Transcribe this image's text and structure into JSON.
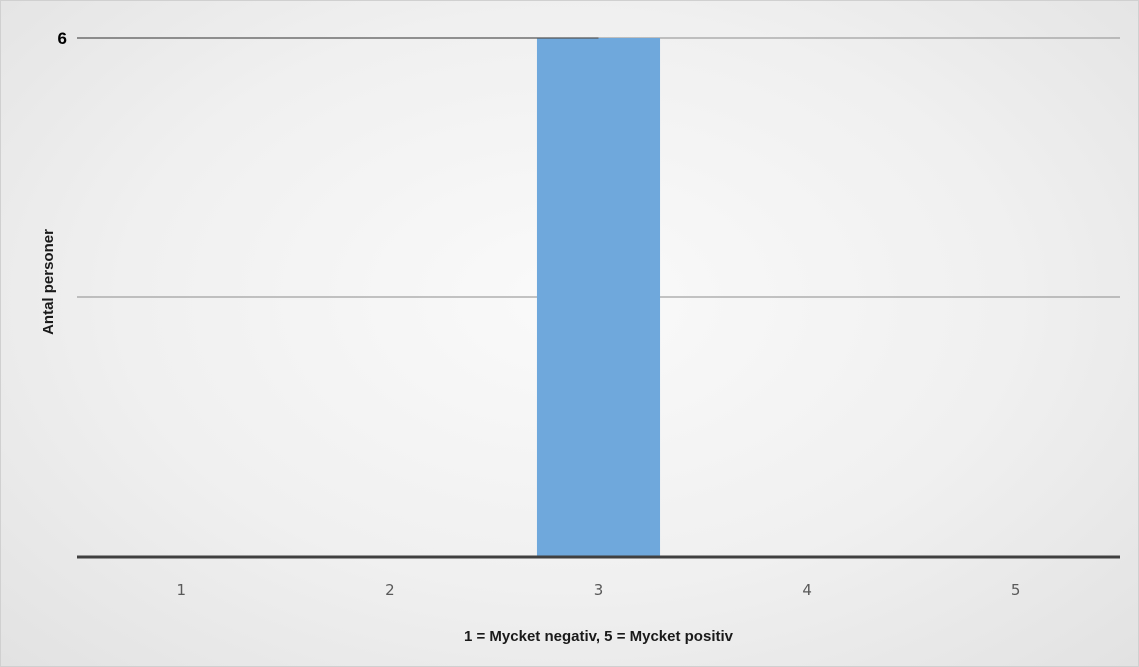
{
  "chart_data": {
    "type": "bar",
    "title": "",
    "xlabel": "1 = Mycket negativ, 5 = Mycket positiv",
    "ylabel": "Antal personer",
    "categories": [
      "1",
      "2",
      "3",
      "4",
      "5"
    ],
    "values": [
      0,
      0,
      6,
      0,
      0
    ],
    "ylim": [
      0,
      6
    ],
    "y_tick_labels": [
      "6"
    ],
    "gridlines": [
      3,
      6
    ],
    "grid": true,
    "legend": "none",
    "bar_color": "#6fa8dc",
    "gridline_color": "#8c8c8c",
    "axis_color": "#404040"
  }
}
